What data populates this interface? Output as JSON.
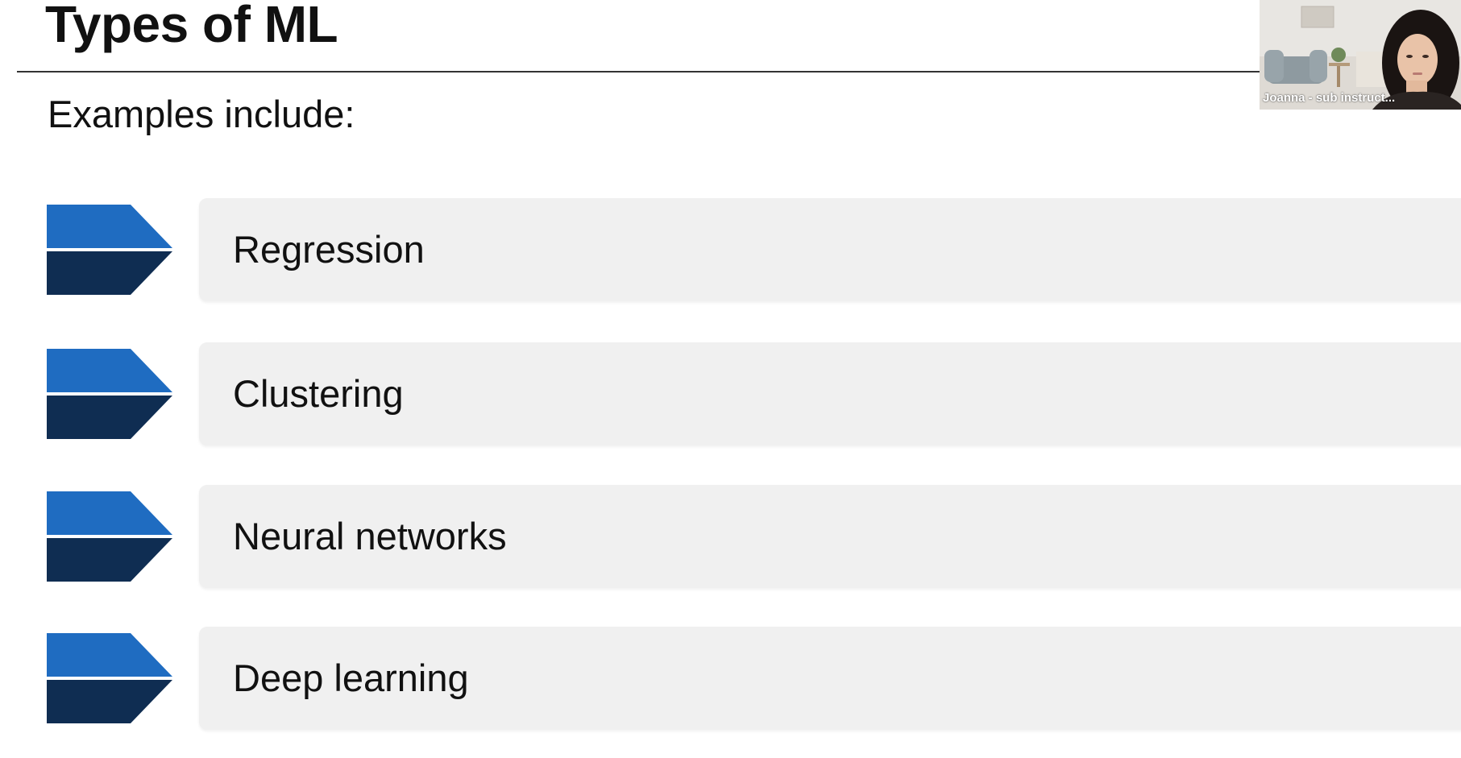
{
  "slide": {
    "title": "Types of ML",
    "subtitle": "Examples include:",
    "items": [
      {
        "label": "Regression"
      },
      {
        "label": "Clustering"
      },
      {
        "label": "Neural networks"
      },
      {
        "label": "Deep learning"
      }
    ]
  },
  "video": {
    "participant_name": "Joanna - sub instruct..."
  },
  "colors": {
    "chevron_top": "#1f6cc1",
    "chevron_bottom": "#0f2d52",
    "item_bg": "#f0f0f0",
    "rule": "#333333"
  }
}
